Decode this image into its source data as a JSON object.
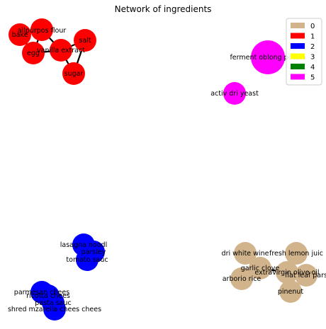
{
  "title": "Network of ingredients",
  "legend": [
    {
      "label": "0",
      "color": "#d2b48c"
    },
    {
      "label": "1",
      "color": "#ff0000"
    },
    {
      "label": "2",
      "color": "#0000ff"
    },
    {
      "label": "3",
      "color": "#ffff00"
    },
    {
      "label": "4",
      "color": "#008000"
    },
    {
      "label": "5",
      "color": "#ff00ff"
    }
  ],
  "nodes": [
    {
      "id": "bake",
      "label": "bake",
      "group": 1
    },
    {
      "id": "allpurpos-flour",
      "label": "allpurpos flour",
      "group": 1
    },
    {
      "id": "egg",
      "label": "egg",
      "group": 1
    },
    {
      "id": "vanilla-extract",
      "label": "vanilla extract",
      "group": 1
    },
    {
      "id": "salt",
      "label": "salt",
      "group": 1
    },
    {
      "id": "sugar",
      "label": "sugar",
      "group": 1
    },
    {
      "id": "ferment-cluster",
      "label": "ferment oblong potato",
      "group": 5
    },
    {
      "id": "activ-dri-yeast",
      "label": "activ dri yeast",
      "group": 5
    },
    {
      "id": "lasagna-noodl",
      "label": "lasagna noodl",
      "group": 2
    },
    {
      "id": "parsley",
      "label": "parsley",
      "group": 2
    },
    {
      "id": "tomato-sauc",
      "label": "tomato sauc",
      "group": 2
    },
    {
      "id": "parmesan-chees",
      "label": "parmesan chees",
      "group": 2
    },
    {
      "id": "ricotta-chees",
      "label": "ricotta chees",
      "group": 2
    },
    {
      "id": "pasta-sauc",
      "label": "pasta sauc",
      "group": 2
    },
    {
      "id": "shred-mozzarella",
      "label": "shred mzarella chees chees",
      "group": 2
    },
    {
      "id": "dri-white-wine",
      "label": "dri white wine",
      "group": 0
    },
    {
      "id": "fresh-lemon-juic",
      "label": "fresh lemon juic",
      "group": 0
    },
    {
      "id": "garlic-clove",
      "label": "garlic clove",
      "group": 0
    },
    {
      "id": "extravirgin-olive-oil",
      "label": "extravirgin olive oil",
      "group": 0
    },
    {
      "id": "flat-leaf-pars",
      "label": "flat leaf pars",
      "group": 0
    },
    {
      "id": "arborio-rice",
      "label": "arborio rice",
      "group": 0
    },
    {
      "id": "pinenut",
      "label": "pinenut",
      "group": 0
    }
  ],
  "edges": [
    [
      "bake",
      "allpurpos-flour"
    ],
    [
      "allpurpos-flour",
      "vanilla-extract"
    ],
    [
      "egg",
      "vanilla-extract"
    ],
    [
      "bake",
      "egg"
    ],
    [
      "vanilla-extract",
      "salt"
    ],
    [
      "vanilla-extract",
      "sugar"
    ],
    [
      "salt",
      "sugar"
    ],
    [
      "allpurpos-flour",
      "egg"
    ],
    [
      "lasagna-noodl",
      "tomato-sauc"
    ],
    [
      "parsley",
      "tomato-sauc"
    ],
    [
      "lasagna-noodl",
      "parsley"
    ],
    [
      "parmesan-chees",
      "ricotta-chees"
    ],
    [
      "ricotta-chees",
      "pasta-sauc"
    ],
    [
      "pasta-sauc",
      "shred-mozzarella"
    ],
    [
      "garlic-clove",
      "extravirgin-olive-oil"
    ],
    [
      "dri-white-wine",
      "garlic-clove"
    ],
    [
      "fresh-lemon-juic",
      "extravirgin-olive-oil"
    ],
    [
      "extravirgin-olive-oil",
      "flat-leaf-pars"
    ],
    [
      "garlic-clove",
      "arborio-rice"
    ],
    [
      "extravirgin-olive-oil",
      "pinenut"
    ]
  ]
}
